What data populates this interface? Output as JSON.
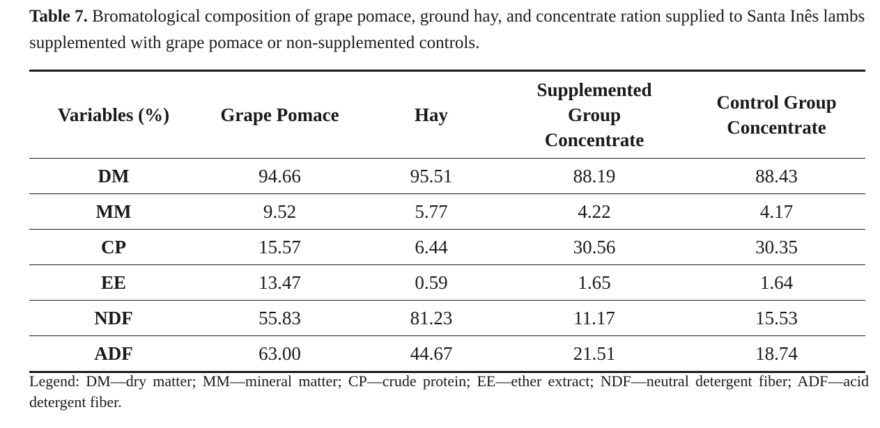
{
  "caption": {
    "label": "Table 7.",
    "text": " Bromatological composition of grape pomace, ground hay, and concentrate ration supplied to Santa Inês lambs supplemented with grape pomace or non-supplemented controls."
  },
  "table": {
    "headers": [
      "Variables (%)",
      "Grape Pomace",
      "Hay",
      "Supplemented Group Concentrate",
      "Control Group Concentrate"
    ],
    "rows": [
      [
        "DM",
        "94.66",
        "95.51",
        "88.19",
        "88.43"
      ],
      [
        "MM",
        "9.52",
        "5.77",
        "4.22",
        "4.17"
      ],
      [
        "CP",
        "15.57",
        "6.44",
        "30.56",
        "30.35"
      ],
      [
        "EE",
        "13.47",
        "0.59",
        "1.65",
        "1.64"
      ],
      [
        "NDF",
        "55.83",
        "81.23",
        "11.17",
        "15.53"
      ],
      [
        "ADF",
        "63.00",
        "44.67",
        "21.51",
        "18.74"
      ]
    ]
  },
  "legend": "Legend: DM—dry matter; MM—mineral matter; CP—crude protein; EE—ether extract; NDF—neutral detergent fiber; ADF—acid detergent fiber."
}
